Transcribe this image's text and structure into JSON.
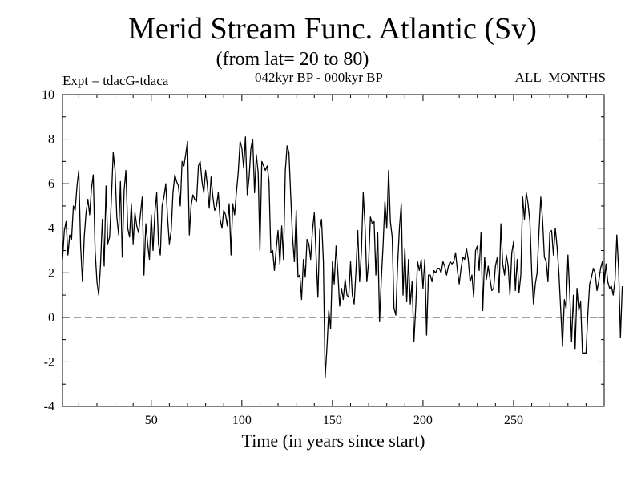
{
  "header": {
    "title": "Merid Stream Func. Atlantic (Sv)",
    "subtitle": "(from lat= 20 to 80)",
    "expt": "Expt = tdacG-tdaca",
    "period": "042kyr BP - 000kyr BP",
    "months": "ALL_MONTHS"
  },
  "chart_data": {
    "type": "line",
    "title": "Merid Stream Func. Atlantic (Sv)",
    "xlabel": "Time (in years since start)",
    "ylabel": "",
    "xlim": [
      1,
      300
    ],
    "ylim": [
      -4,
      10
    ],
    "x_ticks": [
      50,
      100,
      150,
      200,
      250
    ],
    "y_ticks": [
      -4,
      -2,
      0,
      2,
      4,
      6,
      8,
      10
    ],
    "reference_line": {
      "y": 0,
      "style": "dashed"
    },
    "series": [
      {
        "name": "Merid Stream Func.",
        "x_start": 1,
        "x_step": 1,
        "values": [
          2.6,
          3.9,
          4.3,
          2.8,
          3.7,
          3.5,
          5.0,
          4.8,
          5.9,
          6.6,
          3.2,
          1.6,
          3.6,
          4.7,
          5.3,
          4.6,
          5.8,
          6.4,
          3.0,
          1.6,
          1.0,
          2.4,
          4.4,
          2.3,
          5.9,
          3.3,
          3.6,
          5.3,
          7.4,
          6.6,
          4.5,
          3.7,
          6.1,
          2.7,
          5.7,
          6.6,
          4.0,
          3.6,
          5.1,
          3.3,
          4.7,
          4.1,
          3.8,
          4.6,
          5.4,
          1.9,
          4.2,
          3.3,
          2.6,
          4.6,
          3.0,
          4.7,
          5.6,
          3.3,
          2.8,
          5.0,
          5.4,
          6.0,
          4.5,
          3.3,
          3.9,
          5.6,
          6.4,
          6.1,
          5.9,
          5.0,
          7.0,
          6.8,
          7.3,
          7.9,
          3.7,
          5.0,
          5.5,
          5.3,
          5.2,
          6.8,
          7.0,
          6.1,
          5.6,
          6.6,
          5.9,
          4.9,
          6.3,
          5.4,
          4.8,
          5.0,
          5.6,
          4.4,
          4.0,
          4.8,
          4.6,
          4.1,
          5.1,
          2.8,
          5.1,
          4.6,
          5.6,
          6.5,
          7.9,
          7.6,
          6.7,
          8.1,
          5.5,
          6.3,
          7.6,
          8.0,
          5.6,
          7.3,
          6.5,
          3.0,
          7.0,
          6.8,
          6.6,
          6.8,
          6.1,
          2.9,
          3.0,
          2.1,
          3.1,
          3.9,
          2.4,
          4.1,
          2.6,
          6.6,
          7.7,
          7.4,
          5.4,
          3.6,
          2.5,
          4.8,
          1.8,
          1.9,
          0.8,
          2.6,
          1.8,
          3.5,
          3.3,
          2.6,
          3.9,
          4.7,
          2.8,
          0.9,
          3.9,
          4.4,
          2.5,
          -2.7,
          -1.3,
          0.3,
          -0.5,
          2.5,
          1.5,
          3.2,
          2.0,
          0.5,
          1.3,
          0.8,
          1.7,
          1.0,
          0.9,
          2.5,
          1.0,
          0.6,
          2.1,
          3.9,
          1.6,
          2.9,
          5.6,
          4.1,
          1.6,
          2.5,
          4.5,
          4.2,
          4.3,
          1.9,
          3.8,
          -0.2,
          1.7,
          3.3,
          5.2,
          4.0,
          6.6,
          4.3,
          3.6,
          0.4,
          0.1,
          2.4,
          4.0,
          5.1,
          1.0,
          3.1,
          0.7,
          2.6,
          0.6,
          1.6,
          -1.1,
          0.5,
          2.5,
          2.1,
          2.6,
          1.3,
          2.6,
          -0.8,
          1.9,
          1.9,
          1.6,
          2.1,
          2.0,
          2.2,
          2.2,
          2.0,
          2.5,
          2.3,
          1.9,
          2.3,
          2.5,
          2.4,
          2.5,
          2.9,
          2.1,
          1.5,
          2.2,
          2.7,
          2.6,
          3.1,
          2.6,
          1.6,
          1.9,
          0.9,
          3.0,
          3.2,
          2.1,
          3.8,
          0.3,
          2.7,
          1.7,
          2.3,
          1.7,
          1.2,
          1.3,
          2.3,
          2.7,
          1.1,
          4.2,
          2.4,
          1.9,
          2.8,
          2.3,
          1.0,
          2.9,
          3.4,
          1.2,
          2.6,
          1.1,
          1.9,
          5.4,
          4.4,
          5.6,
          5.1,
          4.3,
          2.0,
          0.6,
          1.5,
          2.0,
          3.8,
          5.4,
          4.4,
          2.7,
          2.5,
          1.6,
          3.8,
          3.9,
          2.8,
          4.0,
          3.2,
          2.0,
          0.4,
          -1.3,
          0.8,
          0.4,
          2.8,
          1.1,
          -1.1,
          1.0,
          -1.4,
          1.3,
          0.3,
          0.7,
          -1.6,
          -1.6,
          -1.6,
          0.2,
          1.5,
          1.8,
          2.2,
          2.0,
          1.2,
          1.6,
          2.2,
          2.5,
          1.5,
          2.4,
          1.6,
          1.3,
          1.4,
          1.0,
          1.7,
          3.7,
          2.1,
          -0.9,
          1.4
        ]
      }
    ]
  }
}
